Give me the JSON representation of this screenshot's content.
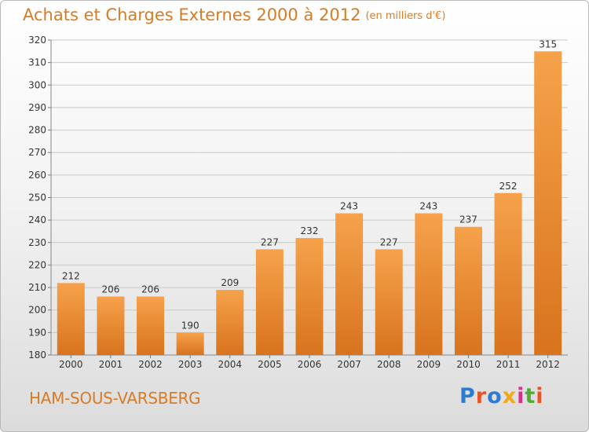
{
  "header": {
    "title": "Achats et Charges Externes 2000 à 2012",
    "unit": "(en milliers d'€)"
  },
  "commune": "HAM-SOUS-VARSBERG",
  "logo": {
    "text": "Proxiti",
    "letter_colors": [
      "#2f7bd1",
      "#e8542a",
      "#2f7bd1",
      "#f2a81c",
      "#d6308a",
      "#4fae32",
      "#e8542a"
    ]
  },
  "colors": {
    "bar_top": "#f6a24b",
    "bar_bottom": "#d8731e",
    "title": "#d97b22",
    "grid": "#c8c8c8"
  },
  "chart_data": {
    "type": "bar",
    "title": "Achats et Charges Externes 2000 à 2012",
    "subtitle": "(en milliers d'€)",
    "xlabel": "",
    "ylabel": "",
    "categories": [
      "2000",
      "2001",
      "2002",
      "2003",
      "2004",
      "2005",
      "2006",
      "2007",
      "2008",
      "2009",
      "2010",
      "2011",
      "2012"
    ],
    "values": [
      212,
      206,
      206,
      190,
      209,
      227,
      232,
      243,
      227,
      243,
      237,
      252,
      315
    ],
    "ylim": [
      180,
      320
    ],
    "yticks": [
      180,
      190,
      200,
      210,
      220,
      230,
      240,
      250,
      260,
      270,
      280,
      290,
      300,
      310,
      320
    ],
    "grid": true,
    "data_labels": true
  }
}
